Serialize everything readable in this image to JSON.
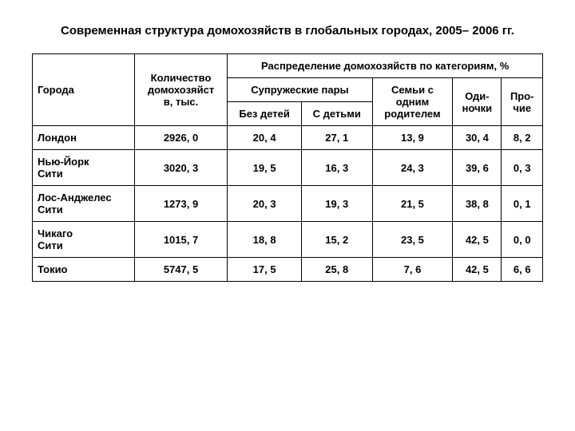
{
  "title": "Современная структура домохозяйств в глобальных городах, 2005– 2006 гг.",
  "table": {
    "headers": {
      "cities": "Города",
      "count_line1": "Количество",
      "count_line2": "домохозяйст",
      "count_line3": "в, тыс.",
      "distribution": "Распределение домохозяйств по категориям, %",
      "couples": "Супружеские пары",
      "no_children": "Без детей",
      "with_children": "С детьми",
      "single_parent_l1": "Семьи с",
      "single_parent_l2": "одним",
      "single_parent_l3": "родителем",
      "singles_l1": "Оди-",
      "singles_l2": "ночки",
      "other_l1": "Про-",
      "other_l2": "чие"
    },
    "rows": [
      {
        "city": "Лондон",
        "count": "2926, 0",
        "no_children": "20, 4",
        "with_children": "27, 1",
        "single_parent": "13, 9",
        "singles": "30, 4",
        "other": "8, 2"
      },
      {
        "city": "Нью-Йорк Сити",
        "count": "3020, 3",
        "no_children": "19, 5",
        "with_children": "16, 3",
        "single_parent": "24, 3",
        "singles": "39, 6",
        "other": "0, 3"
      },
      {
        "city": "Лос-Анджелес Сити",
        "count": "1273, 9",
        "no_children": "20, 3",
        "with_children": "19, 3",
        "single_parent": "21, 5",
        "singles": "38, 8",
        "other": "0, 1"
      },
      {
        "city": "Чикаго Сити",
        "count": "1015, 7",
        "no_children": "18, 8",
        "with_children": "15, 2",
        "single_parent": "23, 5",
        "singles": "42, 5",
        "other": "0, 0"
      },
      {
        "city": "Токио",
        "count": "5747, 5",
        "no_children": "17, 5",
        "with_children": "25, 8",
        "single_parent": "7, 6",
        "singles": "42, 5",
        "other": "6, 6"
      }
    ]
  }
}
